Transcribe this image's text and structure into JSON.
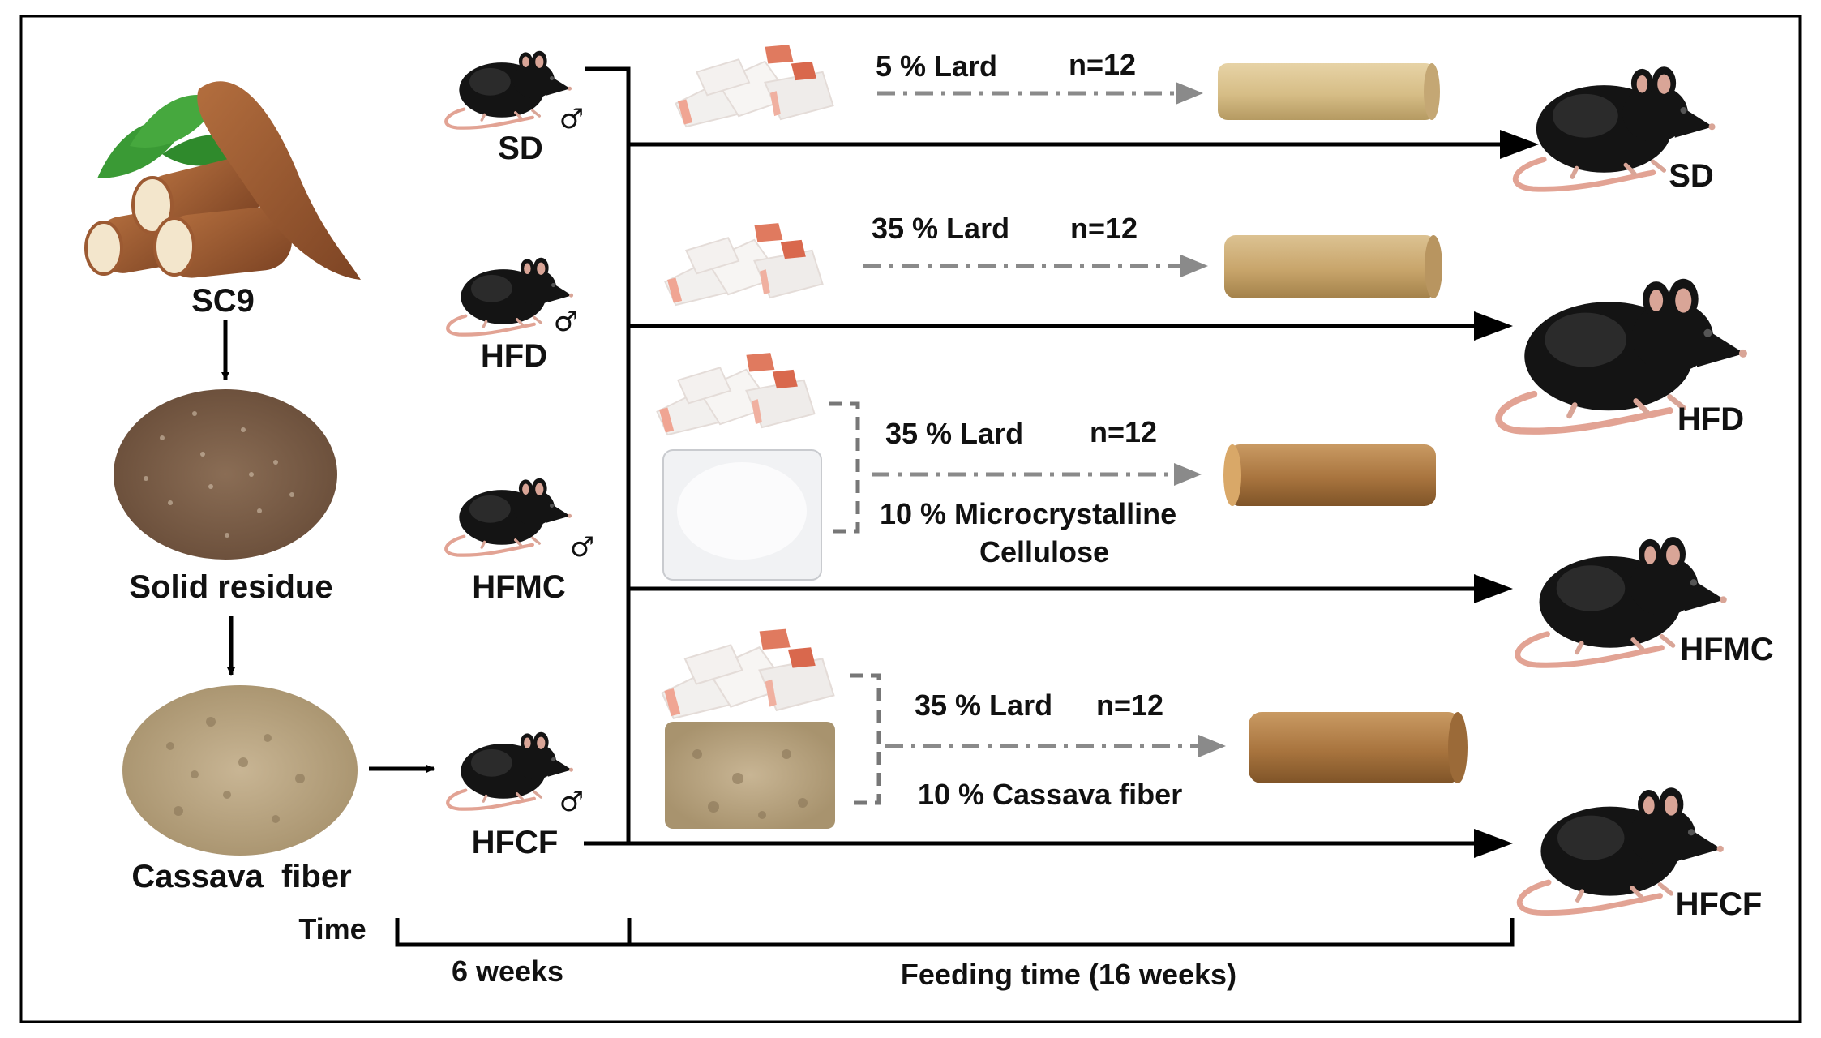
{
  "source": {
    "plant_label": "SC9",
    "residue_label": "Solid residue",
    "fiber_label": "Cassava  fiber"
  },
  "start_groups": {
    "sd": "SD",
    "hfd": "HFD",
    "hfmc": "HFMC",
    "hfcf": "HFCF"
  },
  "sex_symbol": "♂",
  "diets": {
    "sd": {
      "lard": "5 % Lard",
      "n": "n=12"
    },
    "hfd": {
      "lard": "35 % Lard",
      "n": "n=12"
    },
    "hfmc": {
      "lard": "35 % Lard",
      "n": "n=12",
      "additive_line1": "10 % Microcrystalline",
      "additive_line2": "Cellulose"
    },
    "hfcf": {
      "lard": "35 % Lard",
      "n": "n=12",
      "additive": "10 % Cassava fiber"
    }
  },
  "end_groups": {
    "sd": "SD",
    "hfd": "HFD",
    "hfmc": "HFMC",
    "hfcf": "HFCF"
  },
  "timeline": {
    "axis_label": "Time",
    "phase1": "6 weeks",
    "phase2": "Feeding time (16 weeks)"
  },
  "colors": {
    "mouse_body": "#141414",
    "mouse_ear": "#d9a597",
    "mouse_tail": "#e2a394",
    "cassava_skin": "#9c5a32",
    "cassava_flesh": "#f3e6cc",
    "leaf": "#3a9a35",
    "residue": "#7d5f48",
    "fiber": "#bca888",
    "lard_fat": "#f2f0ee",
    "lard_meat": "#e07a5f",
    "pellet_light": "#d8bf8a",
    "pellet_dark": "#a8743e",
    "arrow_gray": "#8a8a8a"
  }
}
